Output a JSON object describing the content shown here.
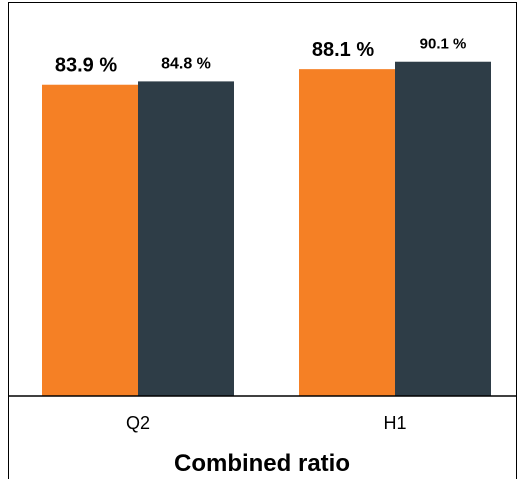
{
  "chart_data": {
    "type": "bar",
    "title": "Combined ratio",
    "xlabel": "",
    "ylabel": "",
    "categories": [
      "Q2",
      "H1"
    ],
    "series": [
      {
        "values": [
          83.9,
          88.1
        ],
        "labels": [
          "83.9 %",
          "88.1 %"
        ],
        "color": "#f58025"
      },
      {
        "values": [
          84.8,
          90.1
        ],
        "labels": [
          "84.8 %",
          "90.1 %"
        ],
        "color": "#2e3d47"
      }
    ],
    "ylim": [
      0,
      100
    ],
    "grid": false,
    "legend": "none"
  }
}
